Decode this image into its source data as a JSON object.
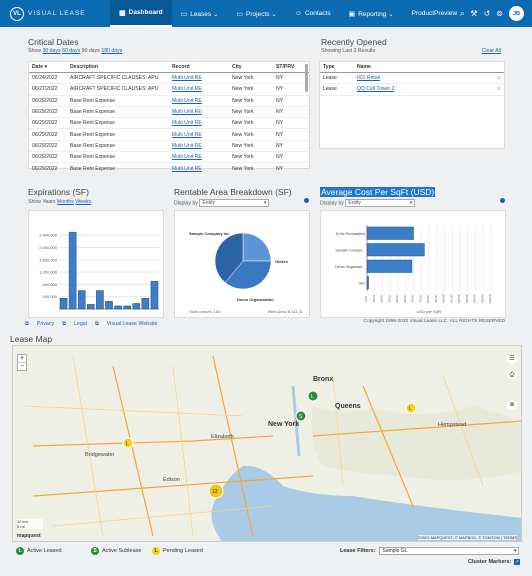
{
  "nav": {
    "logo_mark": "VL",
    "logo_text": "VISUAL LEASE",
    "items": [
      {
        "label": "Dashboard",
        "icon": "▦"
      },
      {
        "label": "Leases ⌄",
        "icon": "▭"
      },
      {
        "label": "Projects ⌄",
        "icon": "▭"
      },
      {
        "label": "Contacts",
        "icon": "☺"
      },
      {
        "label": "Reporting ⌄",
        "icon": "▣"
      },
      {
        "label": "ProductPreview",
        "icon": ""
      }
    ],
    "user_initials": "JB"
  },
  "critical": {
    "title": "Critical Dates",
    "show": "Show",
    "opt30": "30 days",
    "opt60": "60 days",
    "opt90": "90 days",
    "opt180": "180 days",
    "columns": [
      "Date ▾",
      "Description",
      "Record",
      "City",
      "ST/PRV"
    ],
    "rows": [
      [
        "06/24/2022",
        "AIRCRAFT SPECIFIC CLAUSES: APU",
        "Multi Unit RE",
        "New York",
        "NY"
      ],
      [
        "06/27/2022",
        "AIRCRAFT SPECIFIC CLAUSES: APU",
        "Multi Unit RE",
        "New York",
        "NY"
      ],
      [
        "06/29/2022",
        "Base Rent Expense",
        "Multi Unit RE",
        "New York",
        "NY"
      ],
      [
        "06/29/2022",
        "Base Rent Expense",
        "Multi Unit RE",
        "New York",
        "NY"
      ],
      [
        "06/29/2022",
        "Base Rent Expense",
        "Multi Unit RE",
        "New York",
        "NY"
      ],
      [
        "06/29/2022",
        "Base Rent Expense",
        "Multi Unit RE",
        "New York",
        "NY"
      ],
      [
        "06/29/2022",
        "Base Rent Expense",
        "Multi Unit RE",
        "New York",
        "NY"
      ],
      [
        "06/29/2022",
        "Base Rent Expense",
        "Multi Unit RE",
        "New York",
        "NY"
      ],
      [
        "06/29/2022",
        "Base Rent Expense",
        "Multi Unit RE",
        "New York",
        "NY"
      ]
    ]
  },
  "recent": {
    "title": "Recently Opened",
    "sub": "Showing Last 2 Results",
    "clear": "Clear All",
    "columns": [
      "Type",
      "Name"
    ],
    "rows": [
      [
        "Lease",
        "001 Retail"
      ],
      [
        "Lease",
        "QQ Cell Tower 2"
      ]
    ]
  },
  "expirations": {
    "title": "Expirations (SF)",
    "show": "Show",
    "years": "Years",
    "months": "Months",
    "weeks": "Weeks"
  },
  "rentable": {
    "title": "Rentable Area Breakdown (SF)",
    "display_label": "Display by",
    "display_value": "Entity",
    "total_leases": "Total Leases: 163",
    "rent_area": "Rent Area: 6,311,11",
    "slice_labels": [
      "Sample Company Inc",
      "Others",
      "Demo Organization"
    ]
  },
  "avgcost": {
    "title": "Average Cost Per SqFt (USD)",
    "display_label": "Display by",
    "display_value": "Entity",
    "xlabel": "USD per SqFt"
  },
  "chart_data": [
    {
      "type": "bar",
      "title": "Expirations (SF)",
      "categories": [
        "",
        "",
        "",
        "",
        "",
        "",
        "",
        "",
        "",
        "",
        ""
      ],
      "values": [
        350000,
        2500000,
        600000,
        150000,
        600000,
        250000,
        100000,
        100000,
        180000,
        350000,
        900000
      ],
      "ylim": [
        0,
        2700000
      ],
      "ytick_labels": [
        "400,000",
        "800,000",
        "1,200,000",
        "1,600,000",
        "2,000,000",
        "2,400,000"
      ]
    },
    {
      "type": "pie",
      "title": "Rentable Area Breakdown (SF)",
      "categories": [
        "Sample Company Inc",
        "Others",
        "Demo Organization"
      ],
      "values": [
        25,
        36,
        39
      ]
    },
    {
      "type": "bar",
      "orientation": "horizontal",
      "title": "Average Cost Per SqFt (USD)",
      "categories": [
        "To Be Reclassified",
        "Sample Compan...",
        "Demo Organizati...",
        "MC"
      ],
      "values": [
        60,
        74,
        58,
        2
      ],
      "xlim": [
        0,
        160
      ],
      "xlabel": "USD per SqFt",
      "xtick_labels": [
        "0.00",
        "10.00",
        "20.00",
        "30.00",
        "40.00",
        "50.00",
        "60.00",
        "70.00",
        "80.00",
        "90.00",
        "100.00",
        "110.00",
        "120.00",
        "130.00",
        "140.00",
        "150.00",
        "160.00"
      ]
    }
  ],
  "footer": {
    "privacy": "Privacy",
    "legal": "Legal",
    "website": "Visual Lease Website",
    "copyright": "Copyright 1996-2022 Visual Lease LLC. ALL RIGHTS RESERVED"
  },
  "map": {
    "title": "Lease Map",
    "labels": [
      "Bronx",
      "Queens",
      "New York",
      "Elizabeth",
      "Hempstead",
      "Bridgewater",
      "Edison"
    ],
    "copyright": "©2022 MAPQUEST, © MAPBOX, © TOMTOM | TERMS",
    "scale_km": "10 km",
    "scale_mi": "5 mi",
    "brand": "mapquest"
  },
  "legend": {
    "active": "Active Leased",
    "sublease": "Active Sublease",
    "pending": "Pending Leased",
    "filters_label": "Lease Filters:",
    "filters_value": "Sample GL",
    "cluster_label": "Cluster Markers:"
  }
}
